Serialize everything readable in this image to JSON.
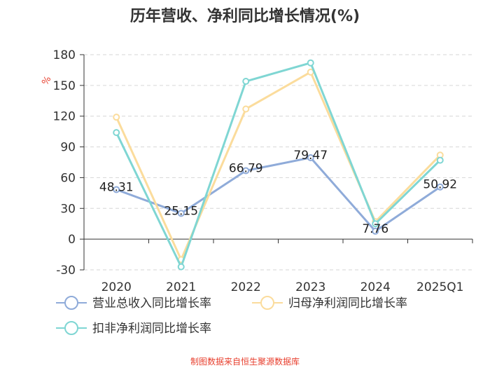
{
  "chart_data": {
    "type": "line",
    "title": "历年营收、净利同比增长情况(%)",
    "ylabel": "%",
    "xlabel": "",
    "categories": [
      "2020",
      "2021",
      "2022",
      "2023",
      "2024",
      "2025Q1"
    ],
    "ylim": [
      -30,
      180
    ],
    "yticks": [
      -30,
      0,
      30,
      60,
      90,
      120,
      150,
      180
    ],
    "grid": true,
    "series": [
      {
        "name": "营业总收入同比增长率",
        "values": [
          48.31,
          25.15,
          66.79,
          79.47,
          7.76,
          50.92
        ],
        "color": "#8fabd9",
        "show_labels": true,
        "labels": [
          "48.31",
          "25.15",
          "66.79",
          "79.47",
          "7.76",
          "50.92"
        ]
      },
      {
        "name": "归母净利润同比增长率",
        "values": [
          119,
          -20,
          127,
          163,
          17,
          82
        ],
        "color": "#fbdc9c",
        "show_labels": false
      },
      {
        "name": "扣非净利润同比增长率",
        "values": [
          104,
          -27,
          154,
          172,
          15,
          77
        ],
        "color": "#7fd6d3",
        "show_labels": false
      }
    ],
    "legend_position": "bottom",
    "source": "制图数据来自恒生聚源数据库"
  }
}
